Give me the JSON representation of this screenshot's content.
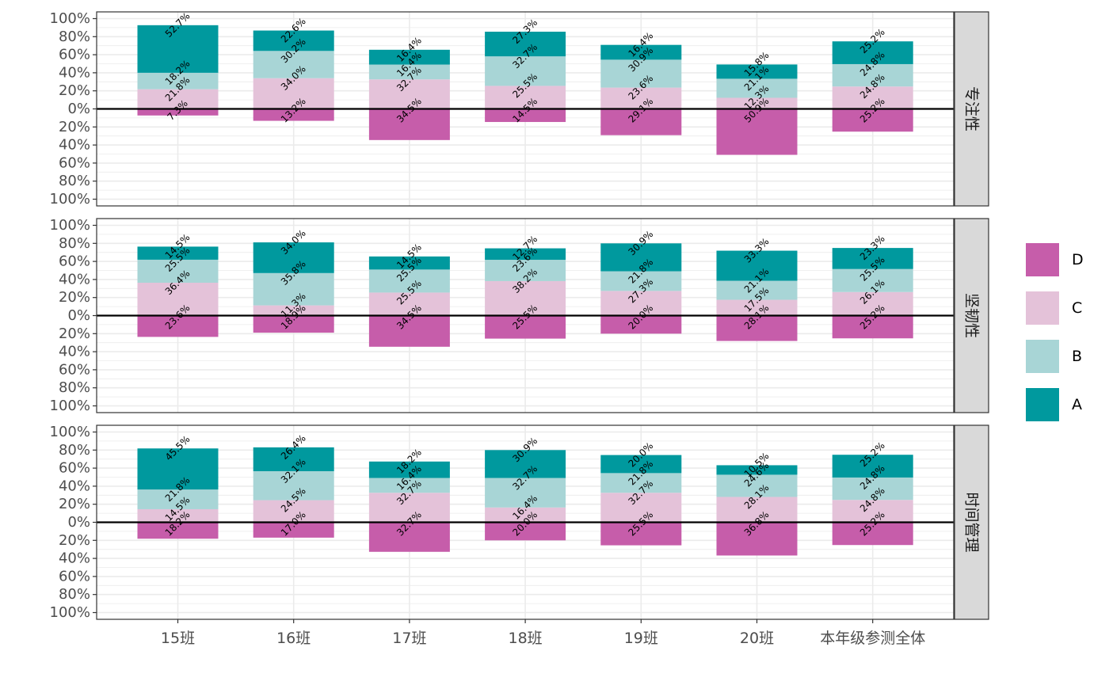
{
  "chart_data": {
    "type": "bar",
    "categories": [
      "15班",
      "16班",
      "17班",
      "18班",
      "19班",
      "20班",
      "本年级参测全体"
    ],
    "y_ticks": [
      "100%",
      "80%",
      "60%",
      "40%",
      "20%",
      "0%",
      "20%",
      "40%",
      "60%",
      "80%",
      "100%"
    ],
    "ylim": [
      -1,
      1
    ],
    "grid": true,
    "legend_position": "right",
    "legend": [
      {
        "key": "D",
        "label": "D",
        "color": "#C65DAA"
      },
      {
        "key": "C",
        "label": "C",
        "color": "#E4C2D9"
      },
      {
        "key": "B",
        "label": "B",
        "color": "#A8D5D6"
      },
      {
        "key": "A",
        "label": "A",
        "color": "#00999E"
      }
    ],
    "panels": [
      {
        "strip": "专注性",
        "D": [
          7.3,
          13.2,
          34.5,
          14.5,
          29.1,
          50.9,
          25.2
        ],
        "C": [
          21.8,
          34.0,
          32.7,
          25.5,
          23.6,
          12.3,
          24.8
        ],
        "B": [
          18.2,
          30.2,
          16.4,
          32.7,
          30.9,
          21.1,
          24.8
        ],
        "A": [
          52.7,
          22.6,
          16.4,
          27.3,
          16.4,
          15.8,
          25.2
        ]
      },
      {
        "strip": "坚韧性",
        "D": [
          23.6,
          18.9,
          34.5,
          25.5,
          20.0,
          28.1,
          25.2
        ],
        "C": [
          36.4,
          11.3,
          25.5,
          38.2,
          27.3,
          17.5,
          26.1
        ],
        "B": [
          25.5,
          35.8,
          25.5,
          23.6,
          21.8,
          21.1,
          25.5
        ],
        "A": [
          14.5,
          34.0,
          14.5,
          12.7,
          30.9,
          33.3,
          23.3
        ]
      },
      {
        "strip": "时间管理",
        "D": [
          18.2,
          17.0,
          32.7,
          20.0,
          25.5,
          36.8,
          25.2
        ],
        "C": [
          14.5,
          24.5,
          32.7,
          16.4,
          32.7,
          28.1,
          24.8
        ],
        "B": [
          21.8,
          32.1,
          16.4,
          32.7,
          21.8,
          24.6,
          24.8
        ],
        "A": [
          45.5,
          26.4,
          18.2,
          30.9,
          20.0,
          10.5,
          25.2
        ]
      }
    ]
  },
  "colors": {
    "D": "#C65DAA",
    "C": "#E4C2D9",
    "B": "#A8D5D6",
    "A": "#00999E",
    "grid": "#EBEBEB",
    "strip_bg": "#D9D9D9",
    "axis_text": "#4D4D4D"
  }
}
